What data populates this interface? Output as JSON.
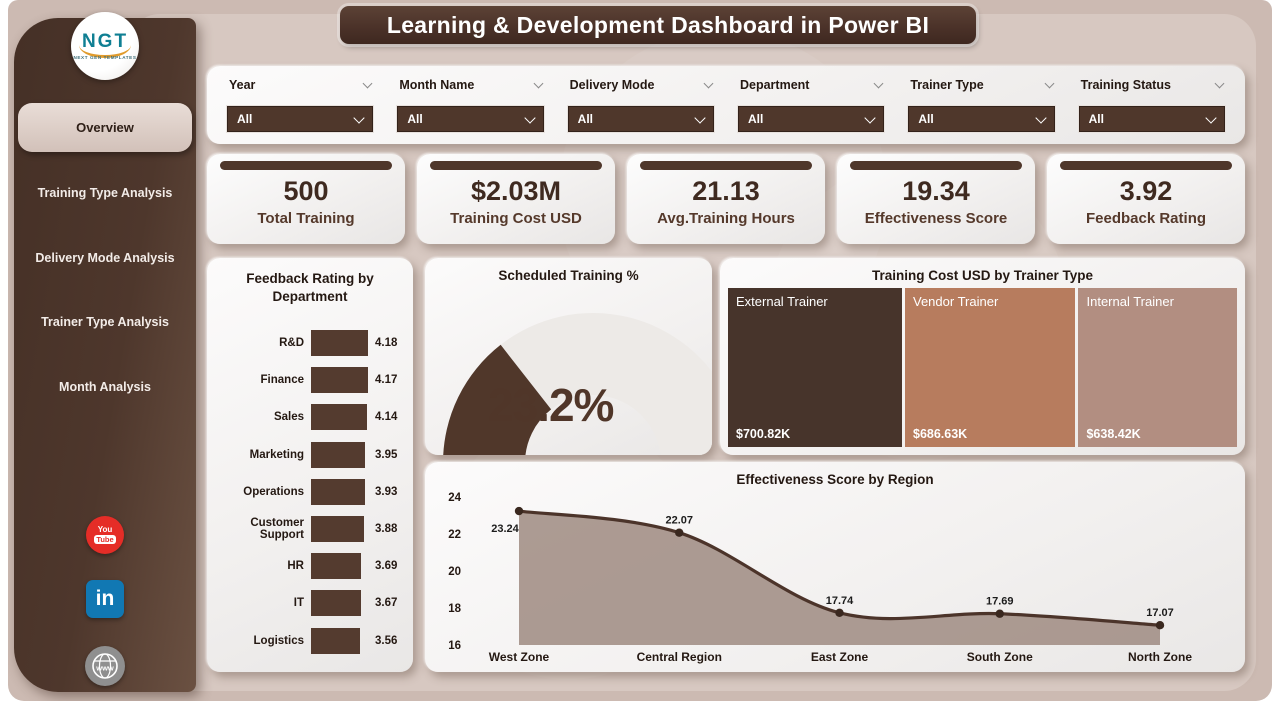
{
  "title": "Learning & Development Dashboard in Power BI",
  "colors": {
    "accent_dark_brown": "#4f372b",
    "canvas_bg": "#ccbab2",
    "panel_bg": "#d7c8c1",
    "bar_fill": "#543b2f",
    "line_stroke": "#4c342a",
    "line_area_fill": "#a39087",
    "donut_slice": "#50372a",
    "donut_rest": "#edeae7",
    "youtube_red": "#e52d27",
    "linkedin_blue": "#1178b3",
    "web_gray": "#8f8f8f"
  },
  "sidebar": {
    "logo": {
      "text": "NGT",
      "subtext": "NEXT GEN TEMPLATES"
    },
    "items": [
      {
        "label": "Overview",
        "active": true
      },
      {
        "label": "Training Type Analysis",
        "active": false
      },
      {
        "label": "Delivery Mode Analysis",
        "active": false
      },
      {
        "label": "Trainer Type Analysis",
        "active": false
      },
      {
        "label": "Month Analysis",
        "active": false
      }
    ],
    "social": [
      {
        "name": "youtube",
        "top": "You",
        "bottom": "Tube"
      },
      {
        "name": "linkedin",
        "label": "in"
      },
      {
        "name": "website",
        "label": "www"
      }
    ]
  },
  "filters": [
    {
      "label": "Year",
      "value": "All"
    },
    {
      "label": "Month Name",
      "value": "All"
    },
    {
      "label": "Delivery Mode",
      "value": "All"
    },
    {
      "label": "Department",
      "value": "All"
    },
    {
      "label": "Trainer Type",
      "value": "All"
    },
    {
      "label": "Training Status",
      "value": "All"
    }
  ],
  "kpis": [
    {
      "value": "500",
      "label": "Total Training"
    },
    {
      "value": "$2.03M",
      "label": "Training Cost USD"
    },
    {
      "value": "21.13",
      "label": "Avg.Training Hours"
    },
    {
      "value": "19.34",
      "label": "Effectiveness Score"
    },
    {
      "value": "3.92",
      "label": "Feedback Rating"
    }
  ],
  "chart_data": [
    {
      "type": "bar",
      "title": "Feedback Rating by Department",
      "orientation": "horizontal",
      "categories": [
        "R&D",
        "Finance",
        "Sales",
        "Marketing",
        "Operations",
        "Customer Support",
        "HR",
        "IT",
        "Logistics"
      ],
      "values": [
        4.18,
        4.17,
        4.14,
        3.95,
        3.93,
        3.88,
        3.69,
        3.67,
        3.56
      ],
      "xlim": [
        0,
        4.18
      ],
      "grid": false,
      "data_labels": true
    },
    {
      "type": "pie",
      "title": "Scheduled Training %",
      "value": 23.2,
      "display": "23.2%",
      "slices": [
        {
          "name": "Scheduled",
          "value": 23.2
        },
        {
          "name": "Rest",
          "value": 76.8
        }
      ]
    },
    {
      "type": "heatmap",
      "subtype": "treemap",
      "title": "Training Cost USD by Trainer Type",
      "categories": [
        "External Trainer",
        "Vendor Trainer",
        "Internal Trainer"
      ],
      "values": [
        700820,
        686630,
        638420
      ],
      "labels": [
        "$700.82K",
        "$686.63K",
        "$638.42K"
      ],
      "colors": [
        "#47342b",
        "#b77c5e",
        "#b28e81"
      ]
    },
    {
      "type": "line",
      "title": "Effectiveness Score by Region",
      "categories": [
        "West Zone",
        "Central Region",
        "East Zone",
        "South Zone",
        "North Zone"
      ],
      "values": [
        23.24,
        22.07,
        17.74,
        17.69,
        17.07
      ],
      "ylim": [
        16,
        24
      ],
      "yticks": [
        16,
        18,
        20,
        22,
        24
      ],
      "area": true,
      "grid": false,
      "data_labels": true,
      "legend": "none"
    }
  ]
}
